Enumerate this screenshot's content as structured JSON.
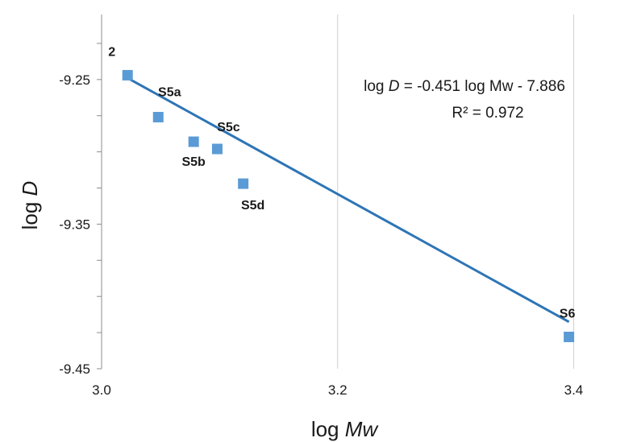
{
  "chart_data": {
    "type": "scatter",
    "xlabel": "log Mw",
    "xlabel_prefix": "log ",
    "xlabel_var": "Mw",
    "ylabel": "log D",
    "ylabel_prefix": "log ",
    "ylabel_var": "D",
    "xlim": [
      3.0,
      3.44
    ],
    "ylim": [
      -9.45,
      -9.205
    ],
    "x_ticks": [
      3.0,
      3.2,
      3.4
    ],
    "x_tick_labels": [
      "3.0",
      "3.2",
      "3.4"
    ],
    "y_ticks": [
      -9.25,
      -9.35,
      -9.45
    ],
    "y_tick_labels": [
      "-9.25",
      "-9.35",
      "-9.45"
    ],
    "grid": "vertical",
    "marker_color": "#5b9bd5",
    "line_color": "#2e75b6",
    "points": [
      {
        "label": "2",
        "x": 3.022,
        "y": -9.247
      },
      {
        "label": "S5a",
        "x": 3.048,
        "y": -9.276
      },
      {
        "label": "S5b",
        "x": 3.078,
        "y": -9.293
      },
      {
        "label": "S5c",
        "x": 3.098,
        "y": -9.298
      },
      {
        "label": "S5d",
        "x": 3.12,
        "y": -9.322
      },
      {
        "label": "S6",
        "x": 3.396,
        "y": -9.428
      }
    ],
    "trendline": {
      "slope": -0.451,
      "intercept": -7.886,
      "x_range": [
        3.02,
        3.396
      ],
      "equation_prefix": "log ",
      "equation_var": "D",
      "equation_rest": " = -0.451 log Mw - 7.886",
      "r2_text": "R² = 0.972"
    }
  }
}
